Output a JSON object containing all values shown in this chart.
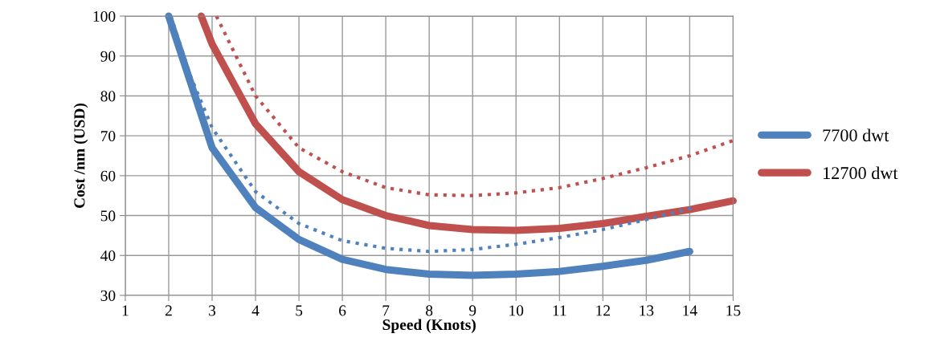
{
  "chart_data": {
    "type": "line",
    "xlabel": "Speed (Knots)",
    "ylabel": "Cost /nm (USD)",
    "xlim": [
      1,
      15
    ],
    "xticks": [
      1,
      2,
      3,
      4,
      5,
      6,
      7,
      8,
      9,
      10,
      11,
      12,
      13,
      14,
      15
    ],
    "ylim": [
      30,
      100
    ],
    "yticks": [
      30,
      40,
      50,
      60,
      70,
      80,
      90,
      100
    ],
    "grid": true,
    "legend": "right",
    "marker": "none",
    "series": [
      {
        "name": "7700 dwt",
        "color": "#4f81bd",
        "line_style": "solid",
        "x": [
          2,
          3,
          4,
          5,
          6,
          7,
          8,
          9,
          10,
          11,
          12,
          13,
          14
        ],
        "values": [
          100,
          67,
          52,
          44,
          39,
          36.5,
          35.3,
          35,
          35.3,
          36,
          37.3,
          38.8,
          41
        ]
      },
      {
        "name": "12700 dwt",
        "color": "#c0504d",
        "line_style": "solid",
        "x": [
          2.75,
          3,
          4,
          5,
          6,
          7,
          8,
          9,
          10,
          11,
          12,
          13,
          14,
          15
        ],
        "values": [
          100,
          93,
          73,
          61,
          54,
          50,
          47.5,
          46.5,
          46.3,
          46.8,
          48,
          49.8,
          51.5,
          53.7
        ]
      },
      {
        "color": "#4f81bd",
        "line_style": "dotted",
        "x": [
          2.05,
          2.5,
          3,
          4,
          5,
          6,
          7,
          8,
          9,
          10,
          11,
          12,
          13,
          14.1
        ],
        "values": [
          100,
          85,
          72,
          56,
          48,
          43.7,
          41.8,
          41,
          41.5,
          42.8,
          44.5,
          46.5,
          49,
          52
        ]
      },
      {
        "color": "#c0504d",
        "line_style": "dotted",
        "x": [
          3.1,
          4,
          5,
          6,
          7,
          8,
          9,
          10,
          11,
          12,
          13,
          14,
          15
        ],
        "values": [
          100,
          80,
          67,
          61,
          57,
          55.2,
          55,
          55.7,
          57,
          59.3,
          62,
          65,
          68.8
        ]
      }
    ]
  }
}
